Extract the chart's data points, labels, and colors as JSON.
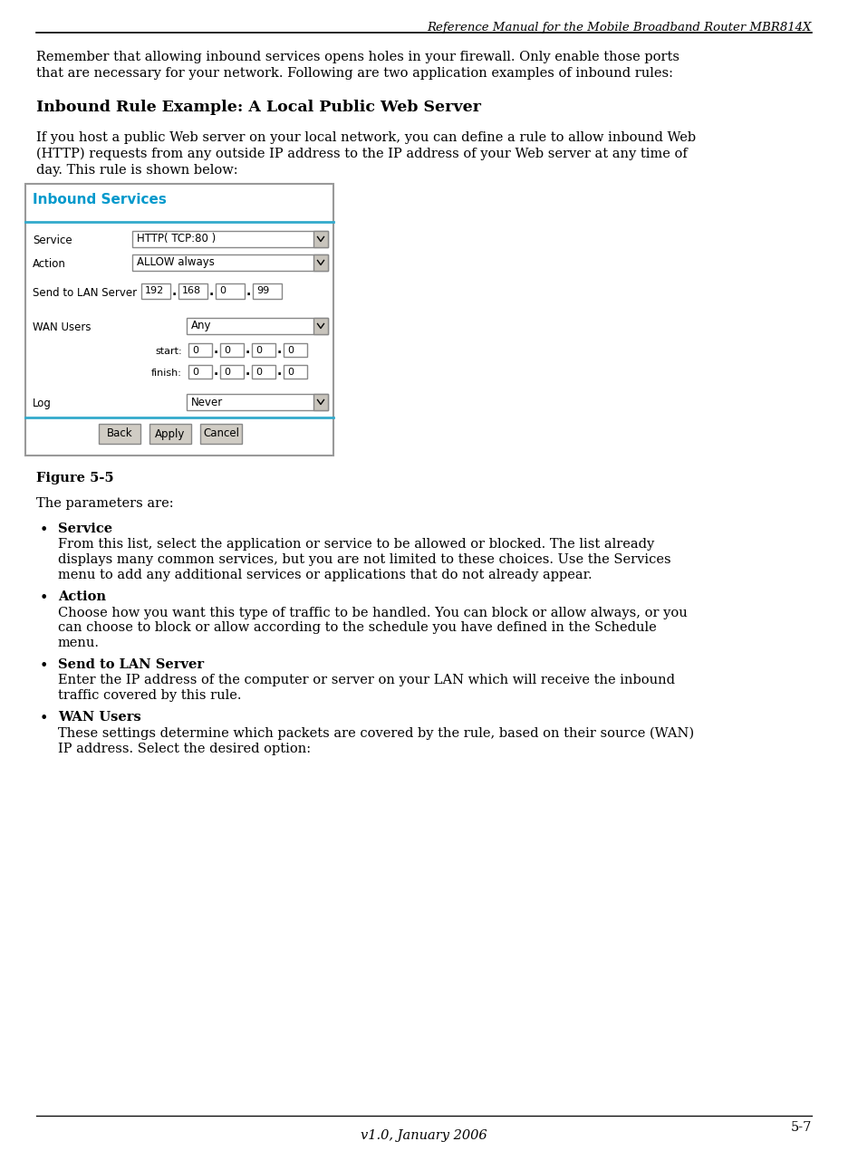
{
  "header_title": "Reference Manual for the Mobile Broadband Router MBR814X",
  "footer_text": "v1.0, January 2006",
  "footer_page": "5-7",
  "para1_l1": "Remember that allowing inbound services opens holes in your firewall. Only enable those ports",
  "para1_l2": "that are necessary for your network. Following are two application examples of inbound rules:",
  "section_heading": "Inbound Rule Example: A Local Public Web Server",
  "para2_l1": "If you host a public Web server on your local network, you can define a rule to allow inbound Web",
  "para2_l2": "(HTTP) requests from any outside IP address to the IP address of your Web server at any time of",
  "para2_l3": "day. This rule is shown below:",
  "figure_label": "Figure 5-5",
  "dialog_title": "Inbound Services",
  "dialog_title_color": "#0099cc",
  "dialog_border": "#999999",
  "dialog_line_color": "#33aacc",
  "buttons": [
    "Back",
    "Apply",
    "Cancel"
  ],
  "bullet_items": [
    {
      "term": "Service",
      "desc_lines": [
        "From this list, select the application or service to be allowed or blocked. The list already",
        "displays many common services, but you are not limited to these choices. Use the Services",
        "menu to add any additional services or applications that do not already appear."
      ]
    },
    {
      "term": "Action",
      "desc_lines": [
        "Choose how you want this type of traffic to be handled. You can block or allow always, or you",
        "can choose to block or allow according to the schedule you have defined in the Schedule",
        "menu."
      ]
    },
    {
      "term": "Send to LAN Server",
      "desc_lines": [
        "Enter the IP address of the computer or server on your LAN which will receive the inbound",
        "traffic covered by this rule."
      ]
    },
    {
      "term": "WAN Users",
      "desc_lines": [
        "These settings determine which packets are covered by the rule, based on their source (WAN)",
        "IP address. Select the desired option:"
      ]
    }
  ],
  "bg_color": "#ffffff",
  "text_color": "#000000"
}
